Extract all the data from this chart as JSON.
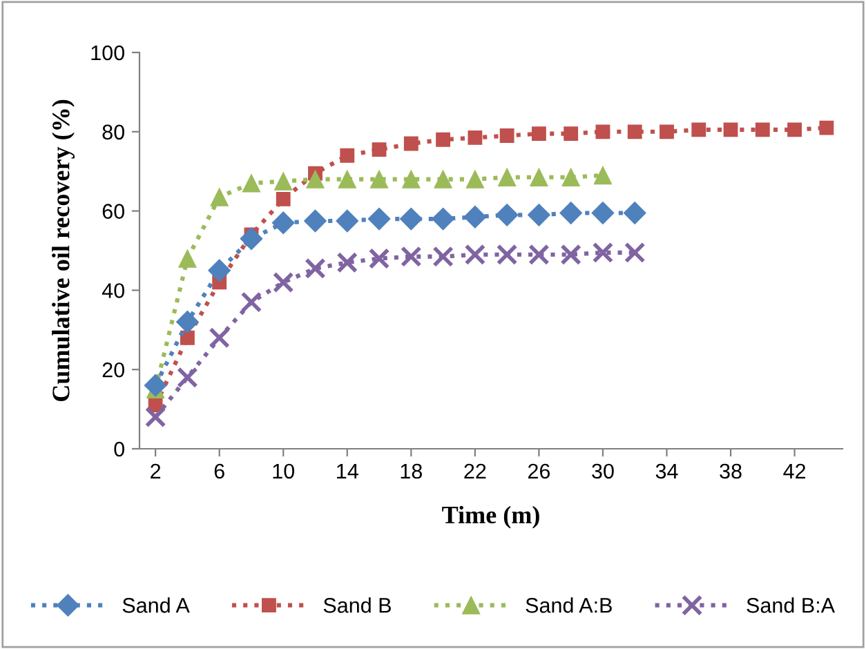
{
  "chart_data": {
    "type": "line",
    "xlabel": "Time (m)",
    "ylabel": "Cumulative oil recovery (%)",
    "xlim": [
      1,
      45
    ],
    "xticks": [
      2,
      6,
      10,
      14,
      18,
      22,
      26,
      30,
      34,
      38,
      42
    ],
    "ylim": [
      0,
      100
    ],
    "yticks": [
      0,
      20,
      40,
      60,
      80,
      100
    ],
    "grid": false,
    "legend": "bottom",
    "line_style": "dotted",
    "series": [
      {
        "name": "Sand A",
        "color": "#4f81bd",
        "marker": "diamond",
        "x": [
          2,
          4,
          6,
          8,
          10,
          12,
          14,
          16,
          18,
          20,
          22,
          24,
          26,
          28,
          30,
          32
        ],
        "values": [
          16,
          32,
          45,
          53,
          57,
          57.5,
          57.5,
          58,
          58,
          58,
          58.5,
          59,
          59,
          59.5,
          59.5,
          59.5
        ]
      },
      {
        "name": "Sand B",
        "color": "#c0504d",
        "marker": "square",
        "x": [
          2,
          4,
          6,
          8,
          10,
          12,
          14,
          16,
          18,
          20,
          22,
          24,
          26,
          28,
          30,
          32,
          34,
          36,
          38,
          40,
          42,
          44
        ],
        "values": [
          11,
          28,
          42,
          54,
          63,
          69.5,
          74,
          75.5,
          77,
          78,
          78.5,
          79,
          79.5,
          79.5,
          80,
          80,
          80,
          80.5,
          80.5,
          80.5,
          80.5,
          81
        ]
      },
      {
        "name": "Sand A:B",
        "color": "#9bbb59",
        "marker": "triangle",
        "x": [
          2,
          4,
          6,
          8,
          10,
          12,
          14,
          16,
          18,
          20,
          22,
          24,
          26,
          28,
          30
        ],
        "values": [
          15,
          48,
          63.5,
          67,
          67.5,
          68,
          68,
          68,
          68,
          68,
          68,
          68.5,
          68.5,
          68.5,
          69
        ]
      },
      {
        "name": "Sand B:A",
        "color": "#8064a2",
        "marker": "cross",
        "x": [
          2,
          4,
          6,
          8,
          10,
          12,
          14,
          16,
          18,
          20,
          22,
          24,
          26,
          28,
          30,
          32
        ],
        "values": [
          8,
          18,
          28,
          37,
          42,
          45.5,
          47,
          48,
          48.5,
          48.5,
          49,
          49,
          49,
          49,
          49.5,
          49.5
        ]
      }
    ]
  }
}
